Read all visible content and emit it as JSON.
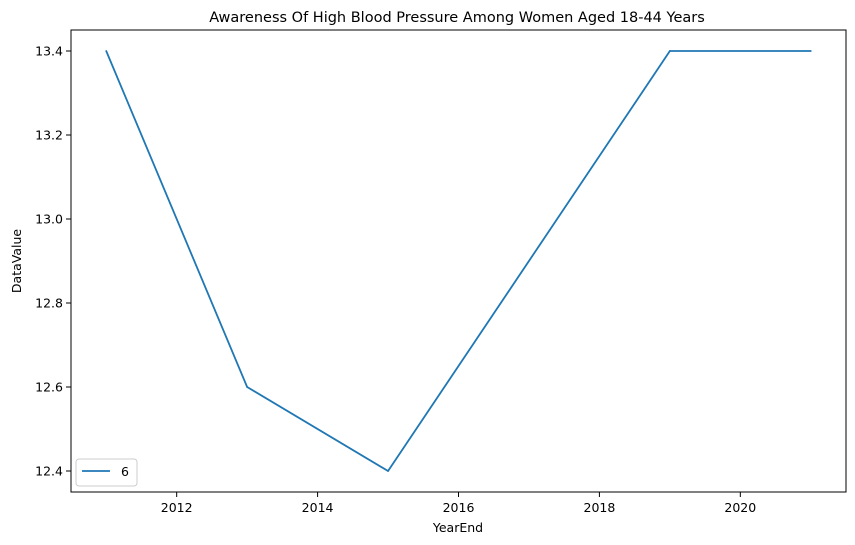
{
  "chart_data": {
    "type": "line",
    "title": "Awareness Of High Blood Pressure Among Women Aged 18-44 Years",
    "xlabel": "YearEnd",
    "ylabel": "DataValue",
    "xlim": [
      2010.5,
      2021.5
    ],
    "ylim": [
      12.35,
      13.45
    ],
    "xticks": [
      2012,
      2014,
      2016,
      2018,
      2020
    ],
    "yticks": [
      12.4,
      12.6,
      12.8,
      13.0,
      13.2,
      13.4
    ],
    "xtick_labels": [
      "2012",
      "2014",
      "2016",
      "2018",
      "2020"
    ],
    "ytick_labels": [
      "12.4",
      "12.6",
      "12.8",
      "13.0",
      "13.2",
      "13.4"
    ],
    "grid": false,
    "legend": {
      "placement": "lower-left",
      "entries": [
        "6"
      ]
    },
    "colors": {
      "series": "#1f77b4"
    },
    "series": [
      {
        "name": "6",
        "x": [
          2011,
          2013,
          2015,
          2019,
          2021
        ],
        "y": [
          13.4,
          12.6,
          12.4,
          13.4,
          13.4
        ]
      }
    ]
  }
}
